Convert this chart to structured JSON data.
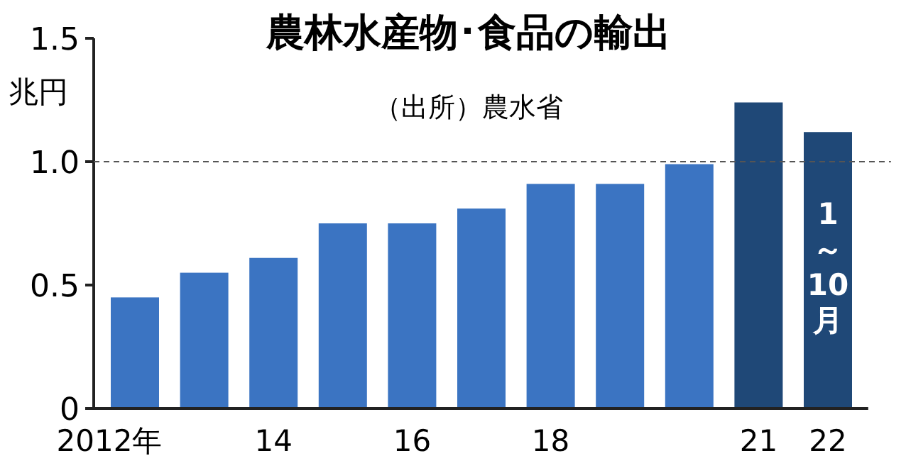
{
  "chart_data": {
    "type": "bar",
    "title": "農林水産物･食品の輸出",
    "subtitle": "（出所）農水省",
    "ylabel": "兆円",
    "categories": [
      "2012年",
      null,
      "14",
      null,
      "16",
      null,
      "18",
      null,
      null,
      "21",
      "22"
    ],
    "values": [
      0.45,
      0.55,
      0.61,
      0.75,
      0.75,
      0.81,
      0.91,
      0.91,
      0.99,
      1.24,
      1.12
    ],
    "colors": [
      "#3b74c2",
      "#3b74c2",
      "#3b74c2",
      "#3b74c2",
      "#3b74c2",
      "#3b74c2",
      "#3b74c2",
      "#3b74c2",
      "#3b74c2",
      "#1f4877",
      "#1f4877"
    ],
    "ylim": [
      0,
      1.5
    ],
    "yticks": [
      0,
      0.5,
      {
        "value": 1,
        "label": "1.0"
      },
      1.5
    ],
    "ref_lines": [
      {
        "axis": "y",
        "value": 1,
        "line_style": "dashed",
        "color": "#555555"
      }
    ],
    "annotations": [
      "1～10月"
    ]
  }
}
